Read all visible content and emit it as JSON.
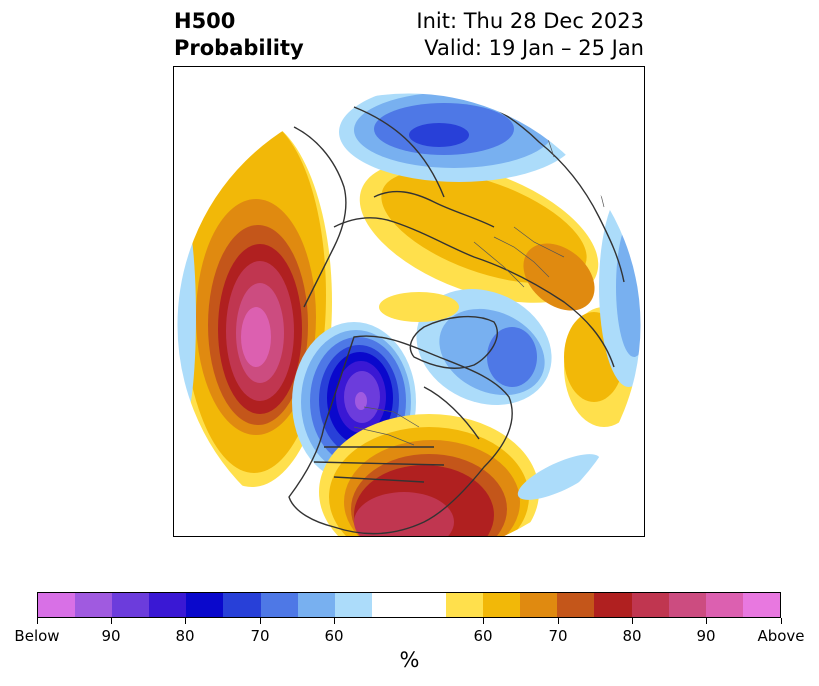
{
  "title": {
    "line1_left": "H500",
    "line2_left": "Probability",
    "line1_right": "Init: Thu 28 Dec 2023",
    "line2_right": "Valid: 19 Jan – 25 Jan"
  },
  "colorbar": {
    "colors": [
      "#d870e6",
      "#a05ae0",
      "#6c3cdc",
      "#3a18d4",
      "#0a08cc",
      "#2840d8",
      "#4e78e6",
      "#78b0f0",
      "#acdcfa",
      "#ffffff",
      "#ffffff",
      "#ffe04c",
      "#f2b808",
      "#e08a10",
      "#c4561a",
      "#b02020",
      "#c03650",
      "#cc4c80",
      "#dc60b0",
      "#e878e0"
    ],
    "tick_labels": [
      "Below",
      "90",
      "80",
      "70",
      "60",
      "60",
      "70",
      "80",
      "90",
      "Above"
    ],
    "units": "%"
  },
  "map": {
    "projection": "north-polar-stereographic",
    "variable": "500 hPa height anomaly probability",
    "anomaly_regions": [
      {
        "region": "eastern-north-pacific",
        "category": "Above",
        "peak_level": "90+"
      },
      {
        "region": "western-north-america",
        "category": "Below",
        "peak_level": "90+"
      },
      {
        "region": "southeastern-united-states",
        "category": "Above",
        "peak_level": "80+"
      },
      {
        "region": "northern-europe-siberia",
        "category": "Above",
        "peak_level": "70"
      },
      {
        "region": "central-siberia",
        "category": "Below",
        "peak_level": "80"
      },
      {
        "region": "arctic-north-atlantic",
        "category": "Below",
        "peak_level": "70"
      },
      {
        "region": "north-atlantic",
        "category": "Above",
        "peak_level": "60"
      }
    ]
  }
}
